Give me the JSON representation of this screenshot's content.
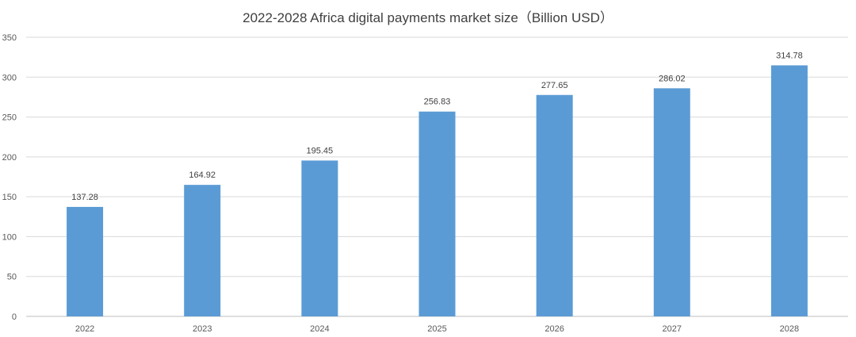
{
  "chart_data": {
    "type": "bar",
    "title": "2022-2028 Africa digital payments market size（Billion USD）",
    "xlabel": "",
    "ylabel": "",
    "categories": [
      "2022",
      "2023",
      "2024",
      "2025",
      "2026",
      "2027",
      "2028"
    ],
    "values": [
      137.28,
      164.92,
      195.45,
      256.83,
      277.65,
      286.02,
      314.78
    ],
    "data_labels": [
      "137.28",
      "164.92",
      "195.45",
      "256.83",
      "277.65",
      "286.02",
      "314.78"
    ],
    "ylim": [
      0,
      350
    ],
    "yticks": [
      0,
      50,
      100,
      150,
      200,
      250,
      300,
      350
    ],
    "grid": true,
    "legend": "none",
    "bar_color": "#5B9BD5",
    "grid_color": "#D9D9D9"
  }
}
